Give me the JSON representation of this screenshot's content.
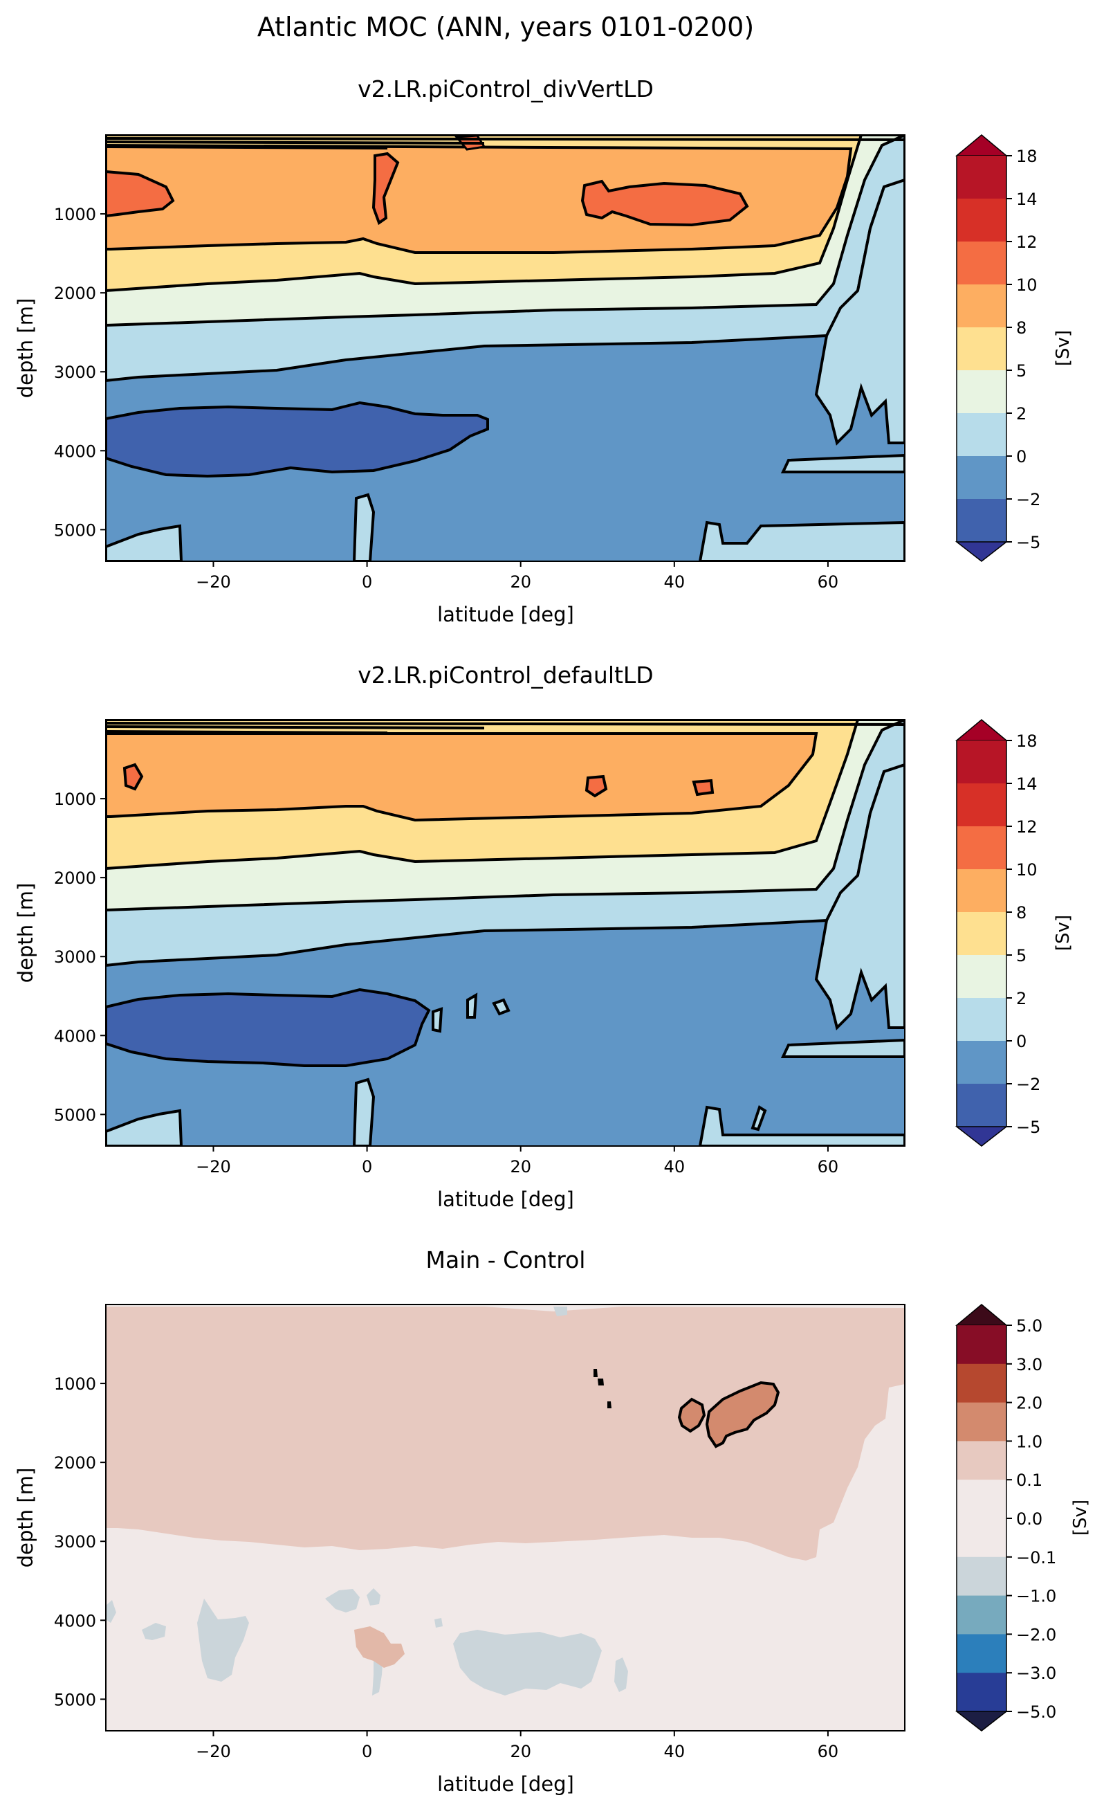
{
  "suptitle": "Atlantic MOC (ANN, years 0101-0200)",
  "chart_data": [
    {
      "type": "contour",
      "title": "v2.LR.piControl_divVertLD",
      "xlabel": "latitude [deg]",
      "ylabel": "depth [m]",
      "xlim": [
        -34,
        70
      ],
      "ylim": [
        5400,
        0
      ],
      "xticks": [
        "−20",
        "0",
        "20",
        "40",
        "60"
      ],
      "xtick_values": [
        -20,
        0,
        20,
        40,
        60
      ],
      "yticks": [
        "1000",
        "2000",
        "3000",
        "4000",
        "5000"
      ],
      "ytick_values": [
        1000,
        2000,
        3000,
        4000,
        5000
      ],
      "colorbar": {
        "label": "[Sv]",
        "levels": [
          "18",
          "14",
          "12",
          "10",
          "8",
          "5",
          "2",
          "0",
          "−2",
          "−5"
        ],
        "colors": [
          "#b71526",
          "#d73027",
          "#f46d43",
          "#fdae61",
          "#fee090",
          "#e8f4e2",
          "#b7dcea",
          "#6096c6",
          "#4062ad"
        ],
        "over_color": "#a50026",
        "under_color": "#313695"
      }
    },
    {
      "type": "contour",
      "title": "v2.LR.piControl_defaultLD",
      "xlabel": "latitude [deg]",
      "ylabel": "depth [m]",
      "xlim": [
        -34,
        70
      ],
      "ylim": [
        5400,
        0
      ],
      "xticks": [
        "−20",
        "0",
        "20",
        "40",
        "60"
      ],
      "xtick_values": [
        -20,
        0,
        20,
        40,
        60
      ],
      "yticks": [
        "1000",
        "2000",
        "3000",
        "4000",
        "5000"
      ],
      "ytick_values": [
        1000,
        2000,
        3000,
        4000,
        5000
      ],
      "colorbar": {
        "label": "[Sv]",
        "levels": [
          "18",
          "14",
          "12",
          "10",
          "8",
          "5",
          "2",
          "0",
          "−2",
          "−5"
        ],
        "colors": [
          "#b71526",
          "#d73027",
          "#f46d43",
          "#fdae61",
          "#fee090",
          "#e8f4e2",
          "#b7dcea",
          "#6096c6",
          "#4062ad"
        ],
        "over_color": "#a50026",
        "under_color": "#313695"
      }
    },
    {
      "type": "contour",
      "title": "Main - Control",
      "xlabel": "latitude [deg]",
      "ylabel": "depth [m]",
      "xlim": [
        -34,
        70
      ],
      "ylim": [
        5400,
        0
      ],
      "xticks": [
        "−20",
        "0",
        "20",
        "40",
        "60"
      ],
      "xtick_values": [
        -20,
        0,
        20,
        40,
        60
      ],
      "yticks": [
        "1000",
        "2000",
        "3000",
        "4000",
        "5000"
      ],
      "ytick_values": [
        1000,
        2000,
        3000,
        4000,
        5000
      ],
      "colorbar": {
        "label": "[Sv]",
        "levels": [
          "5.0",
          "3.0",
          "2.0",
          "1.0",
          "0.1",
          "0.0",
          "−0.1",
          "−1.0",
          "−2.0",
          "−3.0",
          "−5.0"
        ],
        "colors": [
          "#870d26",
          "#b6482f",
          "#d38a6e",
          "#e7c9c0",
          "#f1e9e8",
          "#f1e9e8",
          "#cbd5da",
          "#77aabe",
          "#2c7fbb",
          "#283d96"
        ],
        "over_color": "#3c0a19",
        "under_color": "#1c1e43"
      }
    }
  ]
}
